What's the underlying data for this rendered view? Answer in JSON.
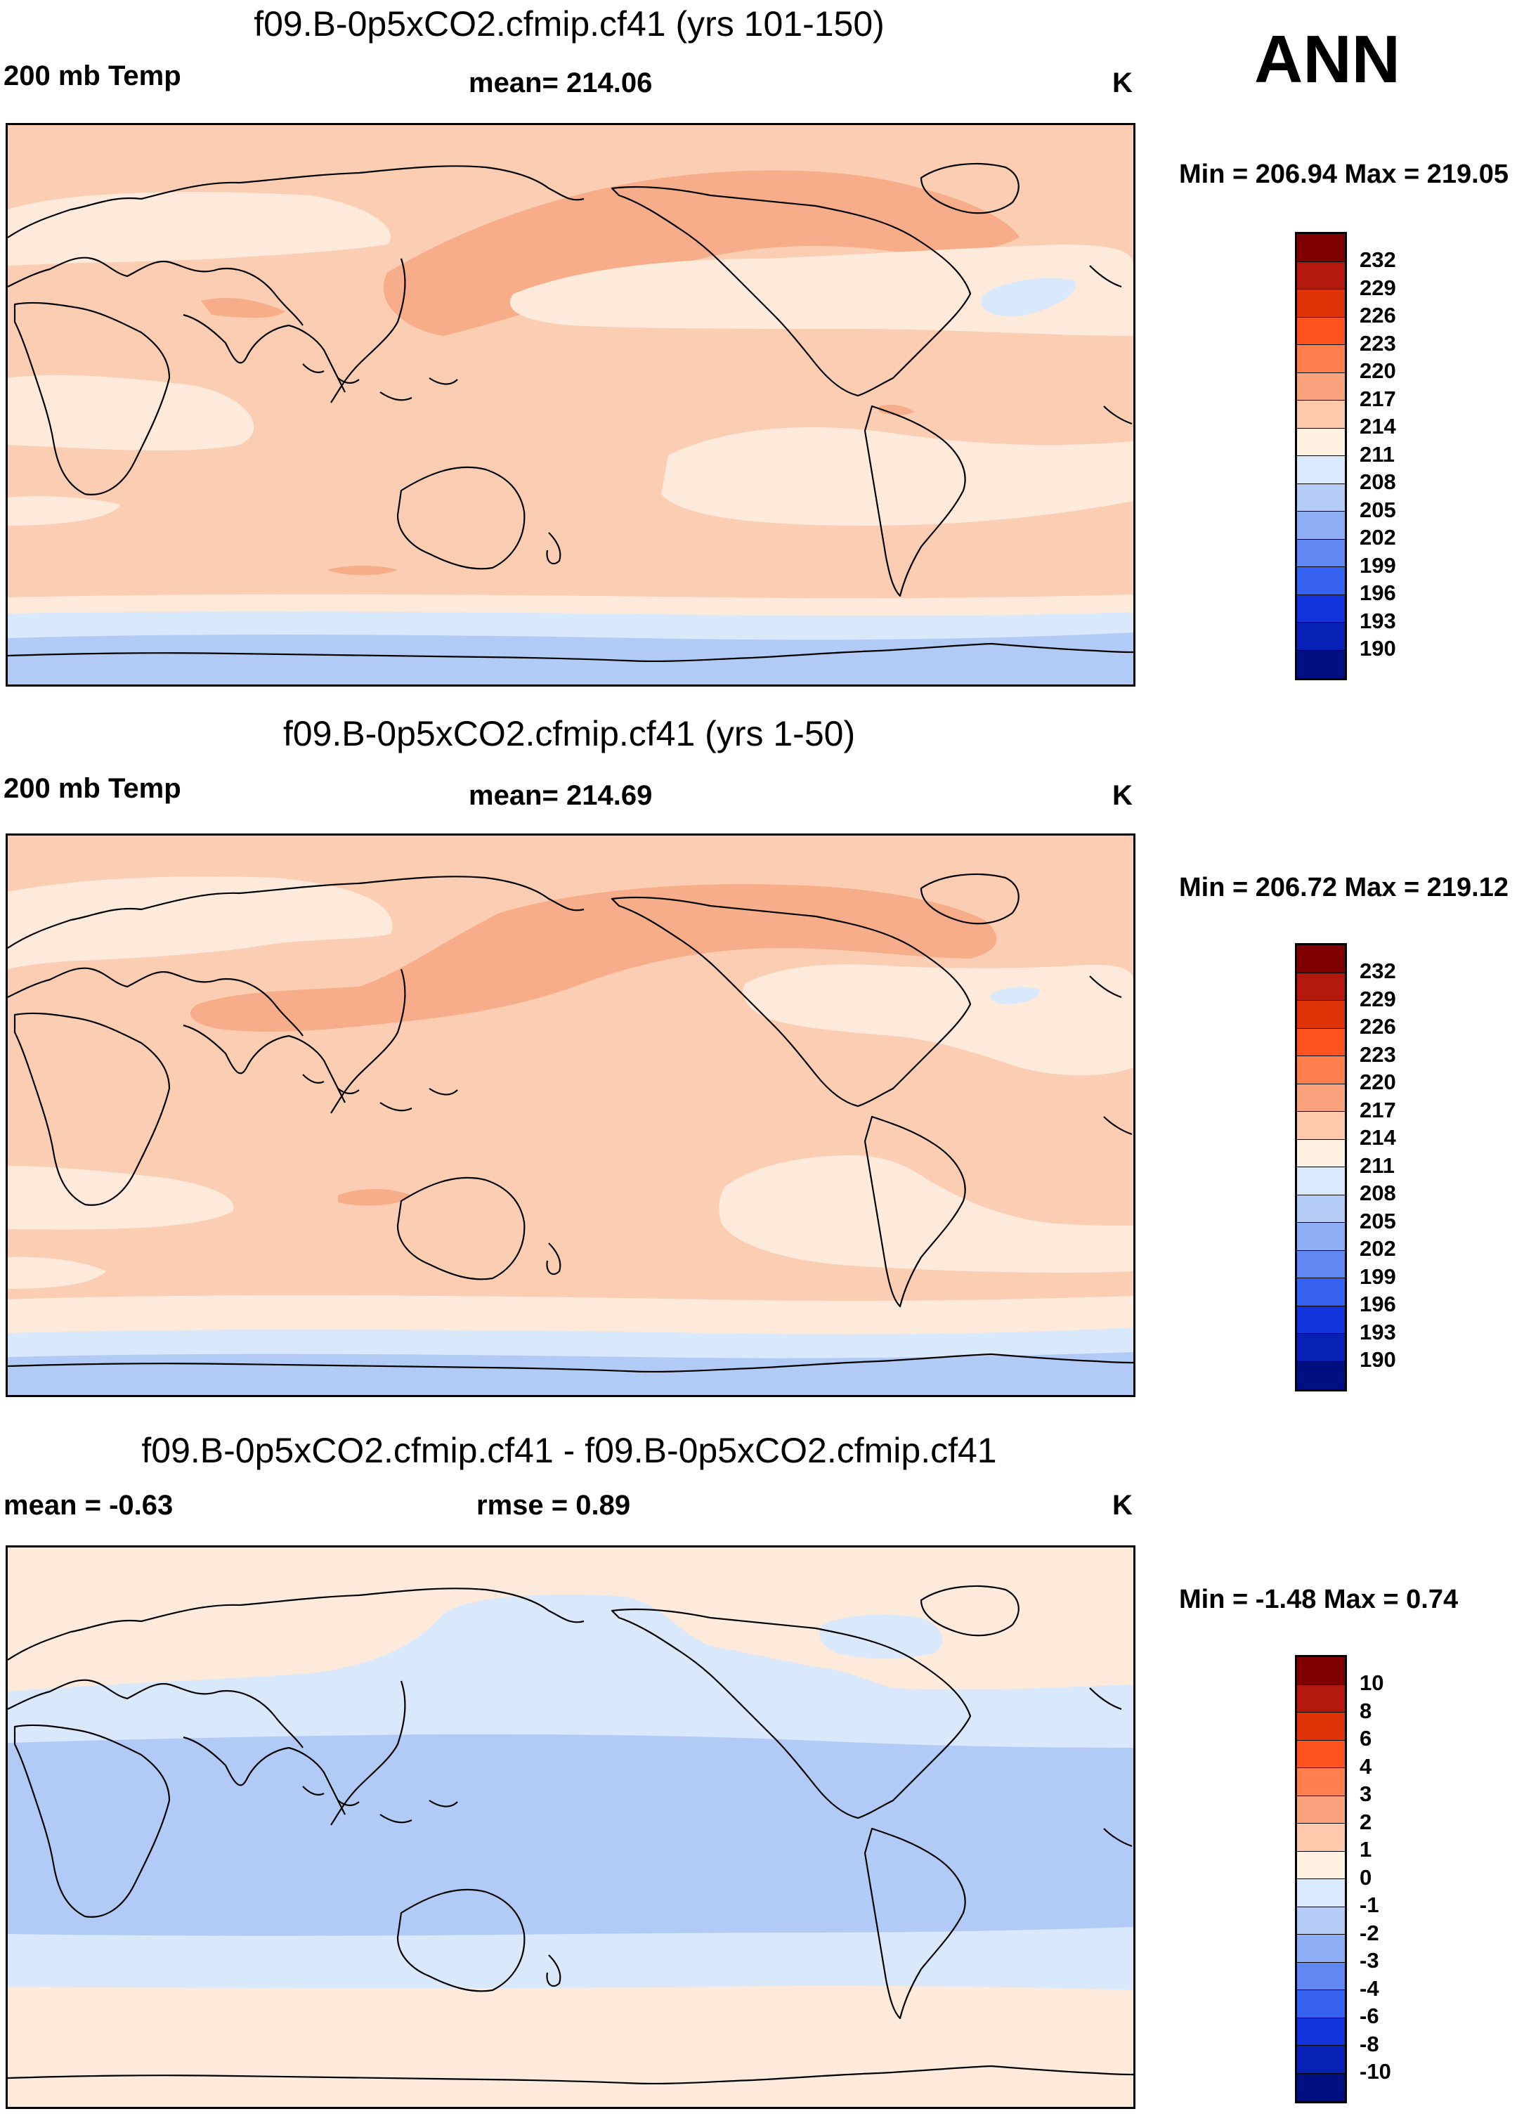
{
  "season": "ANN",
  "panels": [
    {
      "title": "f09.B-0p5xCO2.cfmip.cf41 (yrs 101-150)",
      "left_label": "200 mb Temp",
      "center_label": "mean= 214.06",
      "units": "K",
      "minmax": "Min = 206.94 Max = 219.05"
    },
    {
      "title": "f09.B-0p5xCO2.cfmip.cf41 (yrs 1-50)",
      "left_label": "200 mb Temp",
      "center_label": "mean= 214.69",
      "units": "K",
      "minmax": "Min = 206.72 Max = 219.12"
    },
    {
      "title": "f09.B-0p5xCO2.cfmip.cf41 - f09.B-0p5xCO2.cfmip.cf41",
      "left_label": "mean =  -0.63",
      "center_label": "rmse =   0.89",
      "units": "K",
      "minmax": "Min =  -1.48 Max =   0.74"
    }
  ],
  "colorbar_temp": {
    "labels": [
      "232",
      "229",
      "226",
      "223",
      "220",
      "217",
      "214",
      "211",
      "208",
      "205",
      "202",
      "199",
      "196",
      "193",
      "190"
    ],
    "colors": [
      "#7f0000",
      "#b2180b",
      "#dd3306",
      "#ff5422",
      "#ff7f4f",
      "#fba37d",
      "#ffc9ad",
      "#fff0e2",
      "#dbe9fc",
      "#b5ccf7",
      "#8eaef5",
      "#5f88f1",
      "#3561f0",
      "#1233dc",
      "#0621b3",
      "#000f80"
    ]
  },
  "colorbar_diff": {
    "labels": [
      "10",
      "8",
      "6",
      "4",
      "3",
      "2",
      "1",
      "0",
      "-1",
      "-2",
      "-3",
      "-4",
      "-6",
      "-8",
      "-10"
    ],
    "colors": [
      "#7f0000",
      "#b2180b",
      "#dd3306",
      "#ff5422",
      "#ff7f4f",
      "#fba37d",
      "#ffc9ad",
      "#fff0e2",
      "#dbe9fc",
      "#b5ccf7",
      "#8eaef5",
      "#5f88f1",
      "#3561f0",
      "#1233dc",
      "#0621b3",
      "#000f80"
    ]
  },
  "map_colors": {
    "c214_217": "#fbceb4",
    "c217_220": "#f8ad8a",
    "c211_214": "#fdeadb",
    "c208_211": "#d9e8fb",
    "c205_208": "#b2cbf6",
    "d0_1": "#fdeadb",
    "dm1_0": "#d9e8fb",
    "dm2_m1": "#b2cbf6"
  }
}
